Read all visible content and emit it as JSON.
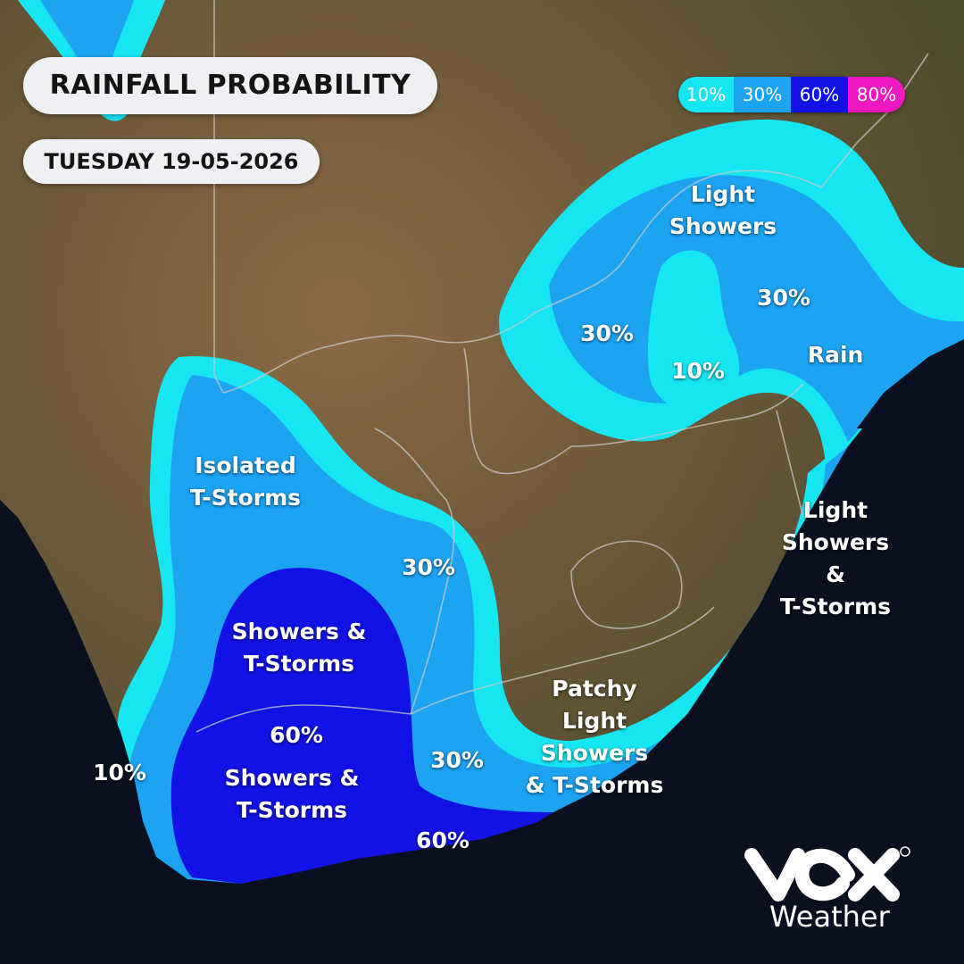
{
  "header": {
    "title": "RAINFALL PROBABILITY",
    "date": "TUESDAY 19-05-2026"
  },
  "legend": [
    {
      "label": "10%",
      "color": "#16e6f2",
      "text_color": "#ffffff"
    },
    {
      "label": "30%",
      "color": "#1ca3f2",
      "text_color": "#ffffff"
    },
    {
      "label": "60%",
      "color": "#1212e6",
      "text_color": "#ffffff"
    },
    {
      "label": "80%",
      "color": "#f018c0",
      "text_color": "#ffffff"
    }
  ],
  "colors": {
    "p10": "#16e6f2",
    "p30": "#1ca3f2",
    "p60": "#1212e6",
    "ocean": "#0b1020",
    "land": "#6b5a3a",
    "border": "#b8b8b8"
  },
  "labels": {
    "north_light_showers": "Light\nShowers",
    "north_30_west": "30%",
    "north_30_east": "30%",
    "north_10": "10%",
    "rain": "Rain",
    "isolated": "Isolated\nT-Storms",
    "central_30": "30%",
    "showers_1": "Showers &\nT-Storms",
    "p60_a": "60%",
    "showers_2": "Showers &\nT-Storms",
    "west_10": "10%",
    "south_30": "30%",
    "south_60": "60%",
    "east_light": "Light\nShowers\n&\nT-Storms",
    "patchy": "Patchy\nLight\nShowers\n& T-Storms"
  },
  "brand": {
    "logo": "vox-logo-icon",
    "name": "Weather"
  }
}
